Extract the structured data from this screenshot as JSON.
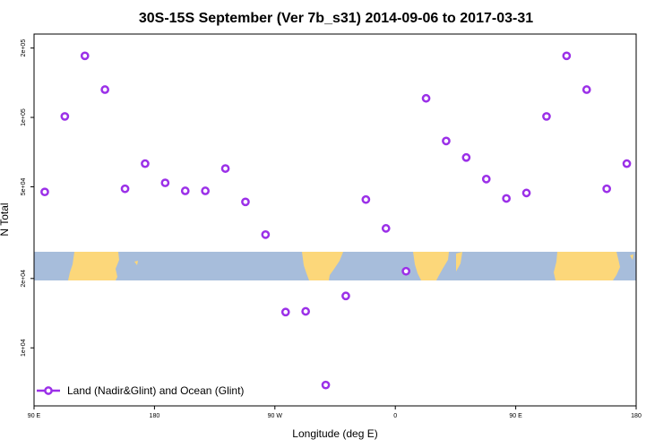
{
  "chart_data": {
    "type": "scatter",
    "title": "30S-15S September (Ver 7b_s31)   2014-09-06 to 2017-03-31",
    "xlabel": "Longitude (deg E)",
    "ylabel": "N Total",
    "x_ticks": [
      {
        "value": 90,
        "label": "90 E"
      },
      {
        "value": 180,
        "label": "180"
      },
      {
        "value": 270,
        "label": "90 W"
      },
      {
        "value": 360,
        "label": "0"
      },
      {
        "value": 450,
        "label": "90 E"
      },
      {
        "value": 540,
        "label": "180"
      }
    ],
    "y_ticks": [
      {
        "value": 10000,
        "label": "1e+04"
      },
      {
        "value": 20000,
        "label": "2e+04"
      },
      {
        "value": 50000,
        "label": "5e+04"
      },
      {
        "value": 100000,
        "label": "1e+05"
      },
      {
        "value": 200000,
        "label": "2e+05"
      }
    ],
    "xlim": [
      90,
      540
    ],
    "ylim": [
      5600,
      230000
    ],
    "y_scale": "log",
    "grid": false,
    "legend_position": "bottom-left",
    "series": [
      {
        "name": "Land (Nadir&Glint) and Ocean (Glint)",
        "color": "#9b30e8",
        "marker": "open-circle",
        "points": [
          {
            "x": 98,
            "y": 47500
          },
          {
            "x": 113,
            "y": 101000
          },
          {
            "x": 128,
            "y": 185000
          },
          {
            "x": 143,
            "y": 132000
          },
          {
            "x": 158,
            "y": 49000
          },
          {
            "x": 173,
            "y": 63000
          },
          {
            "x": 188,
            "y": 52000
          },
          {
            "x": 203,
            "y": 48000
          },
          {
            "x": 218,
            "y": 48000
          },
          {
            "x": 233,
            "y": 60000
          },
          {
            "x": 248,
            "y": 43000
          },
          {
            "x": 263,
            "y": 31000
          },
          {
            "x": 278,
            "y": 14300
          },
          {
            "x": 293,
            "y": 14400
          },
          {
            "x": 308,
            "y": 6900
          },
          {
            "x": 323,
            "y": 16800
          },
          {
            "x": 338,
            "y": 44000
          },
          {
            "x": 353,
            "y": 33000
          },
          {
            "x": 368,
            "y": 21500
          },
          {
            "x": 383,
            "y": 121000
          },
          {
            "x": 398,
            "y": 79000
          },
          {
            "x": 413,
            "y": 67000
          },
          {
            "x": 428,
            "y": 54000
          },
          {
            "x": 443,
            "y": 44500
          },
          {
            "x": 458,
            "y": 47000
          },
          {
            "x": 473,
            "y": 101000
          },
          {
            "x": 488,
            "y": 185000
          },
          {
            "x": 503,
            "y": 132000
          },
          {
            "x": 518,
            "y": 49000
          },
          {
            "x": 533,
            "y": 63000
          }
        ]
      }
    ]
  }
}
